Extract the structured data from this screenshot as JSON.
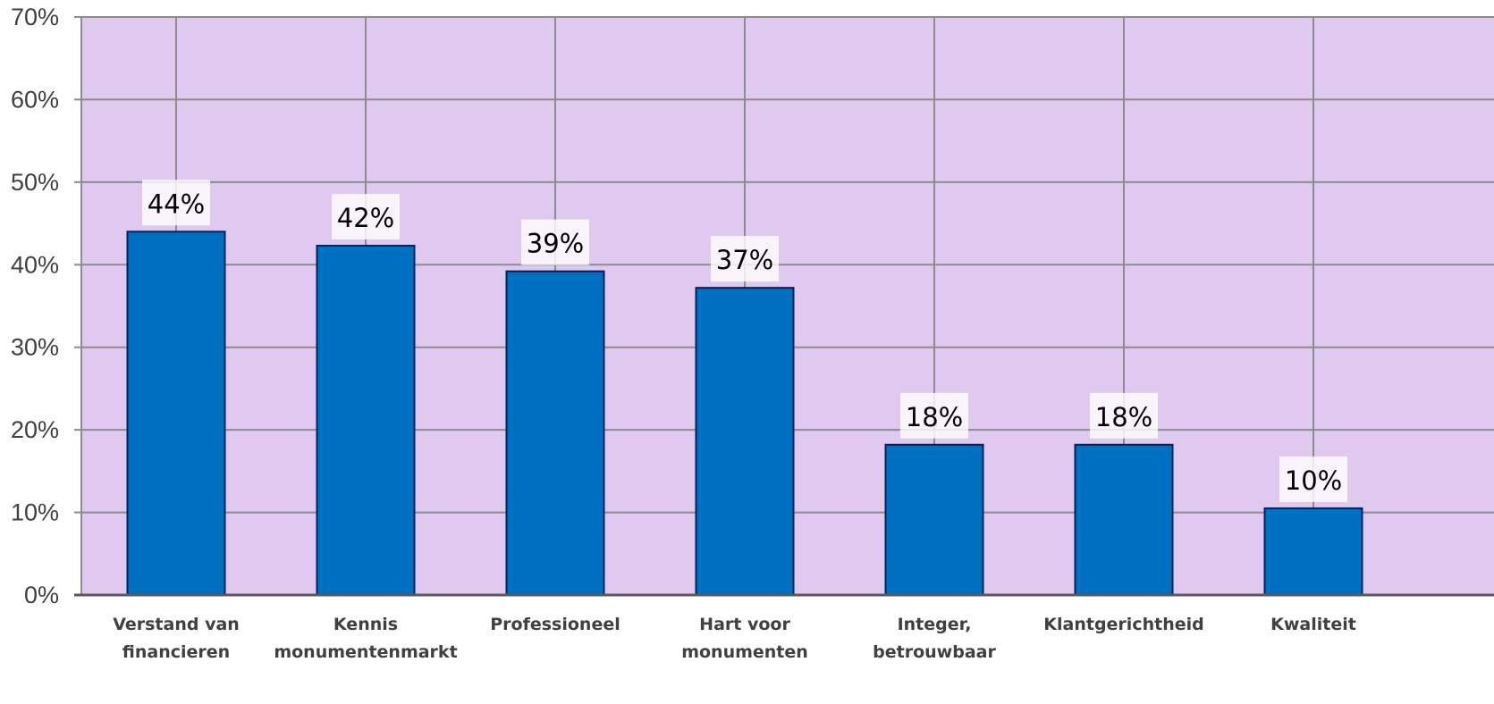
{
  "chart_data": {
    "type": "bar",
    "categories": [
      [
        "Verstand van",
        "financieren"
      ],
      [
        "Kennis",
        "monumentenmarkt"
      ],
      [
        "Professioneel"
      ],
      [
        "Hart voor",
        "monumenten"
      ],
      [
        "Integer,",
        "betrouwbaar"
      ],
      [
        "Klantgerichtheid"
      ],
      [
        "Kwaliteit"
      ]
    ],
    "values": [
      44,
      42.3,
      39.2,
      37.2,
      18.2,
      18.2,
      10.5
    ],
    "data_labels": [
      "44%",
      "42%",
      "39%",
      "37%",
      "18%",
      "18%",
      "10%"
    ],
    "ylim": [
      0,
      70
    ],
    "yticks": [
      0,
      10,
      20,
      30,
      40,
      50,
      60,
      70
    ],
    "ytick_labels": [
      "0%",
      "10%",
      "20%",
      "30%",
      "40%",
      "50%",
      "60%",
      "70%"
    ],
    "title": "",
    "xlabel": "",
    "ylabel": "",
    "grid": true,
    "legend": "none",
    "colors": {
      "plot_background": "#DFC9EE",
      "bar_fill": "#0070C0",
      "bar_stroke": "#002060",
      "grid": "#8C8C8C",
      "axis": "#595959",
      "label_box": "#FFFFFF"
    }
  }
}
